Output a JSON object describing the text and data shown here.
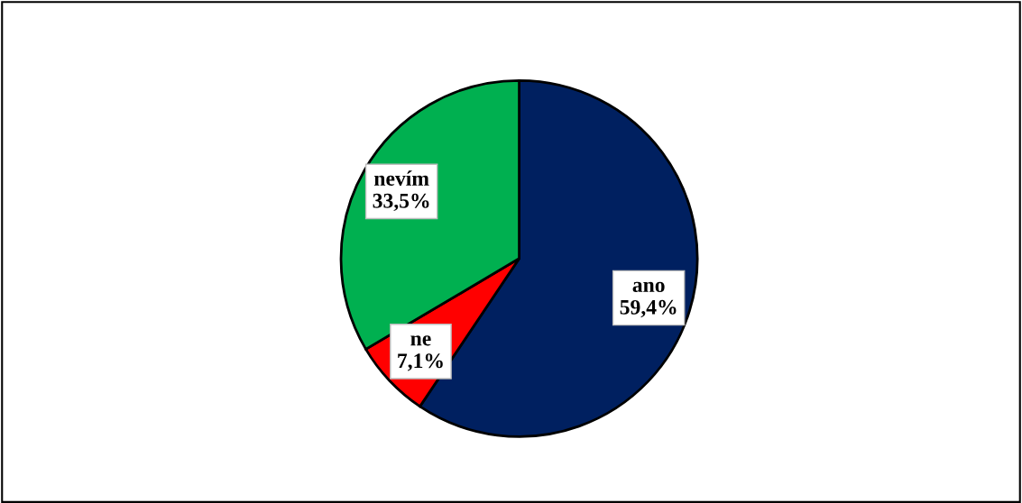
{
  "chart_data": {
    "type": "pie",
    "categories": [
      "ano",
      "ne",
      "nevím"
    ],
    "values": [
      59.4,
      7.1,
      33.5
    ],
    "value_labels": [
      "59,4%",
      "7,1%",
      "33,5%"
    ],
    "colors": [
      "#002060",
      "#ff0000",
      "#00b050"
    ]
  }
}
